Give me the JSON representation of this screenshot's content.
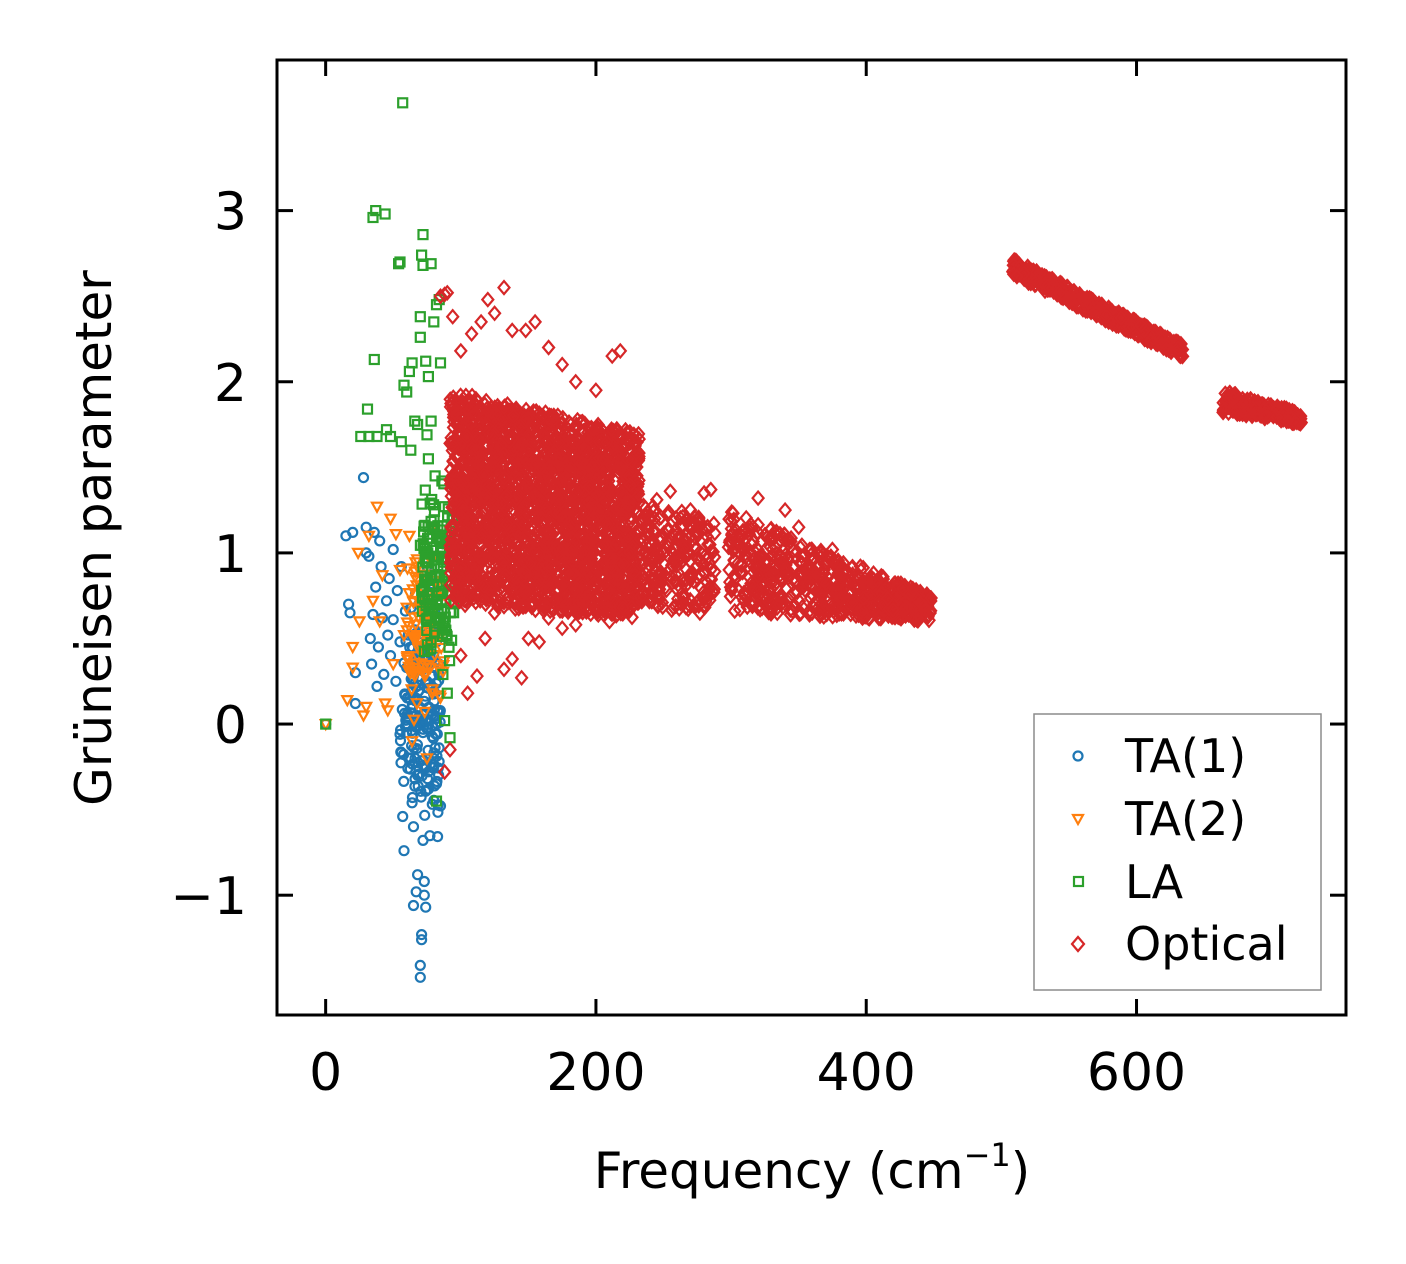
{
  "chart_data": {
    "type": "scatter",
    "xlabel": "Frequency (cm",
    "xlabel_sup": "−1",
    "xlabel_close": ")",
    "ylabel": "Grüneisen parameter",
    "xlim": [
      -36,
      755
    ],
    "ylim": [
      -1.7,
      3.88
    ],
    "x_ticks": [
      0,
      200,
      400,
      600
    ],
    "x_tick_labels": [
      "0",
      "200",
      "400",
      "600"
    ],
    "y_ticks": [
      -1,
      0,
      1,
      2,
      3
    ],
    "y_tick_labels": [
      "−1",
      "0",
      "1",
      "2",
      "3"
    ],
    "legend_position": "lower-right",
    "series": [
      {
        "name": "TA(1)",
        "color": "#1f77b4",
        "marker": "circle",
        "points": [
          [
            0,
            0
          ],
          [
            15,
            1.1
          ],
          [
            17,
            0.7
          ],
          [
            18,
            0.65
          ],
          [
            20,
            1.12
          ],
          [
            22,
            0.3
          ],
          [
            22,
            0.12
          ],
          [
            28,
            1.44
          ],
          [
            30,
            1.15
          ],
          [
            30,
            1.0
          ],
          [
            32,
            0.98
          ],
          [
            33,
            0.5
          ],
          [
            34,
            0.35
          ],
          [
            35,
            0.64
          ],
          [
            36,
            1.12
          ],
          [
            37,
            0.8
          ],
          [
            38,
            0.22
          ],
          [
            39,
            0.45
          ],
          [
            40,
            1.07
          ],
          [
            41,
            0.92
          ],
          [
            42,
            0.62
          ],
          [
            43,
            0.29
          ],
          [
            45,
            0.72
          ],
          [
            46,
            0.52
          ],
          [
            47,
            0.85
          ],
          [
            48,
            0.4
          ],
          [
            50,
            0.61
          ],
          [
            50,
            1.02
          ],
          [
            52,
            0.25
          ],
          [
            53,
            0.78
          ],
          [
            55,
            0.48
          ],
          [
            56,
            0.92
          ],
          [
            57,
            -0.54
          ],
          [
            58,
            -0.74
          ],
          [
            59,
            0.66
          ],
          [
            60,
            0.33
          ],
          [
            60,
            -0.05
          ],
          [
            62,
            0.15
          ],
          [
            63,
            -0.2
          ],
          [
            64,
            -0.46
          ],
          [
            65,
            -1.06
          ],
          [
            65,
            -0.6
          ],
          [
            66,
            0.55
          ],
          [
            67,
            -0.98
          ],
          [
            68,
            -0.88
          ],
          [
            68,
            -0.3
          ],
          [
            69,
            0.7
          ],
          [
            70,
            -1.48
          ],
          [
            70,
            -1.41
          ],
          [
            71,
            -1.26
          ],
          [
            71,
            -1.23
          ],
          [
            72,
            -0.05
          ],
          [
            72,
            -0.68
          ],
          [
            73,
            -0.92
          ],
          [
            73,
            -1.0
          ],
          [
            74,
            -1.07
          ],
          [
            75,
            0.25
          ],
          [
            75,
            0.92
          ],
          [
            76,
            -0.38
          ],
          [
            77,
            0.42
          ],
          [
            78,
            0.62
          ],
          [
            79,
            0.82
          ],
          [
            80,
            0.58
          ],
          [
            81,
            0.18
          ],
          [
            82,
            0.48
          ],
          [
            83,
            0.08
          ],
          [
            84,
            0.35
          ]
        ],
        "cloud": {
          "xmin": 55,
          "xmax": 85,
          "ymin": -0.9,
          "ymax": 0.95,
          "count": 170
        }
      },
      {
        "name": "TA(2)",
        "color": "#ff7f0e",
        "marker": "triangle-down",
        "points": [
          [
            0,
            0
          ],
          [
            16,
            0.14
          ],
          [
            20,
            0.45
          ],
          [
            20,
            0.33
          ],
          [
            24,
            1.0
          ],
          [
            25,
            0.6
          ],
          [
            28,
            0.05
          ],
          [
            30,
            0.1
          ],
          [
            32,
            1.1
          ],
          [
            35,
            0.72
          ],
          [
            38,
            1.27
          ],
          [
            40,
            0.6
          ],
          [
            42,
            0.87
          ],
          [
            44,
            0.12
          ],
          [
            46,
            0.08
          ],
          [
            48,
            1.2
          ],
          [
            50,
            0.35
          ],
          [
            52,
            1.11
          ],
          [
            55,
            0.9
          ],
          [
            58,
            0.52
          ],
          [
            60,
            0.68
          ],
          [
            62,
            1.1
          ],
          [
            64,
            -0.1
          ],
          [
            66,
            0.28
          ],
          [
            70,
            0.45
          ],
          [
            72,
            0.85
          ],
          [
            75,
            -0.2
          ],
          [
            78,
            0.95
          ],
          [
            80,
            1.12
          ],
          [
            82,
            0.74
          ],
          [
            84,
            0.32
          ]
        ],
        "cloud": {
          "xmin": 60,
          "xmax": 88,
          "ymin": -0.1,
          "ymax": 1.15,
          "count": 90
        }
      },
      {
        "name": "LA",
        "color": "#2ca02c",
        "marker": "square",
        "points": [
          [
            0,
            0
          ],
          [
            26,
            1.68
          ],
          [
            31,
            1.84
          ],
          [
            32,
            1.68
          ],
          [
            35,
            2.96
          ],
          [
            37,
            3.0
          ],
          [
            36,
            2.13
          ],
          [
            38,
            1.68
          ],
          [
            44,
            2.98
          ],
          [
            45,
            1.72
          ],
          [
            48,
            1.68
          ],
          [
            54,
            2.69
          ],
          [
            55,
            2.7
          ],
          [
            56,
            1.65
          ],
          [
            57,
            3.63
          ],
          [
            58,
            1.98
          ],
          [
            60,
            1.94
          ],
          [
            62,
            2.06
          ],
          [
            63,
            1.6
          ],
          [
            64,
            2.11
          ],
          [
            66,
            1.77
          ],
          [
            68,
            1.75
          ],
          [
            70,
            2.38
          ],
          [
            70,
            2.26
          ],
          [
            71,
            2.74
          ],
          [
            72,
            2.68
          ],
          [
            72,
            2.86
          ],
          [
            74,
            2.12
          ],
          [
            75,
            1.69
          ],
          [
            76,
            1.55
          ],
          [
            76,
            2.03
          ],
          [
            78,
            2.69
          ],
          [
            78,
            1.77
          ],
          [
            80,
            2.35
          ],
          [
            81,
            1.45
          ],
          [
            82,
            2.45
          ],
          [
            82,
            -0.45
          ],
          [
            84,
            2.48
          ],
          [
            85,
            2.11
          ],
          [
            86,
            1.42
          ],
          [
            88,
            1.27
          ],
          [
            88,
            0.02
          ],
          [
            90,
            0.18
          ],
          [
            92,
            -0.08
          ]
        ],
        "cloud": {
          "xmin": 70,
          "xmax": 95,
          "ymin": 0.1,
          "ymax": 1.65,
          "count": 140
        }
      },
      {
        "name": "Optical",
        "color": "#d62728",
        "marker": "diamond",
        "points": [
          [
            85,
            2.5
          ],
          [
            88,
            2.51
          ],
          [
            90,
            2.52
          ],
          [
            94,
            2.38
          ],
          [
            100,
            2.18
          ],
          [
            108,
            2.28
          ],
          [
            115,
            2.35
          ],
          [
            120,
            2.48
          ],
          [
            125,
            2.4
          ],
          [
            132,
            2.55
          ],
          [
            138,
            2.3
          ],
          [
            148,
            2.3
          ],
          [
            155,
            2.35
          ],
          [
            165,
            2.2
          ],
          [
            175,
            2.1
          ],
          [
            185,
            2.0
          ],
          [
            200,
            1.95
          ],
          [
            212,
            2.15
          ],
          [
            218,
            2.18
          ],
          [
            230,
            1.68
          ],
          [
            88,
            -0.28
          ],
          [
            92,
            -0.15
          ],
          [
            100,
            0.4
          ],
          [
            105,
            0.18
          ],
          [
            112,
            0.28
          ],
          [
            118,
            0.5
          ],
          [
            125,
            0.65
          ],
          [
            132,
            0.32
          ],
          [
            138,
            0.38
          ],
          [
            145,
            0.27
          ],
          [
            150,
            0.5
          ],
          [
            158,
            0.48
          ],
          [
            165,
            0.62
          ],
          [
            175,
            0.56
          ],
          [
            185,
            0.58
          ],
          [
            195,
            0.68
          ],
          [
            205,
            0.72
          ],
          [
            210,
            0.6
          ],
          [
            220,
            0.68
          ],
          [
            245,
            1.31
          ],
          [
            255,
            1.36
          ],
          [
            270,
            1.25
          ],
          [
            280,
            1.35
          ],
          [
            285,
            1.37
          ],
          [
            320,
            1.32
          ],
          [
            340,
            1.25
          ],
          [
            350,
            1.15
          ],
          [
            375,
            1.02
          ]
        ],
        "bands": [
          {
            "x": [
              92,
              232
            ],
            "y_low": [
              0.7,
              0.62
            ],
            "y_high": [
              1.95,
              1.7
            ],
            "count": 2400
          },
          {
            "x": [
              232,
              288
            ],
            "y_low": [
              0.7,
              0.62
            ],
            "y_high": [
              1.3,
              1.2
            ],
            "count": 260
          },
          {
            "x": [
              298,
              448
            ],
            "y_low": [
              0.65,
              0.6
            ],
            "y_high": [
              1.25,
              0.75
            ],
            "count": 650
          },
          {
            "x": [
              508,
              634
            ],
            "y_low": [
              2.62,
              2.14
            ],
            "y_high": [
              2.72,
              2.22
            ],
            "count": 500
          },
          {
            "x": [
              664,
              722
            ],
            "y_low": [
              1.82,
              1.75
            ],
            "y_high": [
              1.95,
              1.82
            ],
            "count": 220
          }
        ]
      }
    ]
  }
}
